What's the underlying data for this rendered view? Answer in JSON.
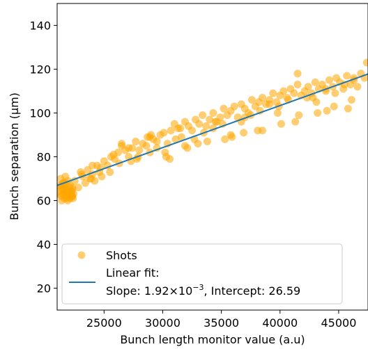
{
  "chart_data": {
    "type": "scatter",
    "xlabel": "Bunch length monitor value (a.u)",
    "ylabel": "Bunch separation (µm)",
    "xlim": [
      21000,
      47500
    ],
    "ylim": [
      10,
      150
    ],
    "xticks": [
      25000,
      30000,
      35000,
      40000,
      45000
    ],
    "yticks": [
      20,
      40,
      60,
      80,
      100,
      120,
      140
    ],
    "grid": false,
    "legend_position": "bottom-left",
    "colors": {
      "scatter": "#FFA500",
      "fit": "#1f77b4"
    },
    "series": [
      {
        "name": "Shots",
        "kind": "scatter",
        "x": [
          21100,
          21200,
          21300,
          21350,
          21400,
          21450,
          21500,
          21550,
          21600,
          21650,
          21700,
          21750,
          21800,
          21850,
          21900,
          21950,
          22000,
          22050,
          22100,
          22150,
          22200,
          22250,
          22300,
          22350,
          22400,
          21300,
          21500,
          21700,
          21900,
          22100,
          22300,
          21400,
          21800,
          22200,
          21600,
          22000,
          21200,
          21900,
          22300,
          21700,
          22500,
          22800,
          23000,
          23200,
          23400,
          23600,
          23800,
          24000,
          24200,
          24400,
          24600,
          24800,
          25000,
          25300,
          25600,
          25900,
          26200,
          26500,
          26800,
          27100,
          27400,
          27700,
          28000,
          28300,
          28600,
          28900,
          29200,
          29500,
          29800,
          30100,
          30400,
          30700,
          31000,
          31300,
          31600,
          31900,
          32200,
          32500,
          32800,
          33100,
          33400,
          33700,
          34000,
          34300,
          34600,
          34900,
          35200,
          35500,
          35800,
          36100,
          36400,
          36700,
          37000,
          37300,
          37600,
          37900,
          38200,
          38500,
          38800,
          39100,
          39400,
          39700,
          40000,
          40300,
          40600,
          40900,
          41200,
          41500,
          41800,
          42100,
          42400,
          42700,
          43000,
          43300,
          43600,
          43900,
          44200,
          44500,
          44800,
          45100,
          45400,
          45700,
          46000,
          46300,
          46600,
          46900,
          47200,
          47400,
          23100,
          23900,
          24700,
          25500,
          26300,
          27100,
          27900,
          28700,
          29500,
          30300,
          31100,
          31900,
          32700,
          33500,
          34300,
          35100,
          35900,
          36700,
          37500,
          38300,
          39100,
          39900,
          40700,
          41500,
          42300,
          43100,
          43900,
          44700,
          45500,
          46300,
          26500,
          27800,
          29000,
          30200,
          31500,
          33000,
          34500,
          35800,
          37000,
          38500,
          39800,
          41300,
          42800,
          44000,
          45800,
          24000,
          25800,
          27300,
          28900,
          30600,
          32100,
          33800,
          35300,
          36900,
          38100,
          40100,
          41600,
          43200,
          44600,
          46100
        ],
        "y": [
          64,
          63,
          66,
          62,
          67,
          65,
          63,
          68,
          61,
          64,
          66,
          62,
          65,
          63,
          60,
          64,
          62,
          66,
          61,
          63,
          64,
          62,
          65,
          61,
          63,
          70,
          68,
          71,
          69,
          67,
          66,
          60,
          61,
          62,
          65,
          63,
          67,
          64,
          62,
          68,
          69,
          66,
          73,
          71,
          68,
          74,
          70,
          72,
          69,
          76,
          73,
          71,
          78,
          76,
          80,
          79,
          82,
          85,
          83,
          80,
          84,
          87,
          83,
          86,
          85,
          89,
          88,
          87,
          90,
          91,
          86,
          92,
          95,
          93,
          89,
          96,
          94,
          92,
          97,
          95,
          99,
          94,
          97,
          100,
          96,
          98,
          102,
          99,
          101,
          103,
          98,
          104,
          102,
          100,
          106,
          103,
          105,
          107,
          104,
          106,
          109,
          105,
          108,
          110,
          107,
          111,
          109,
          113,
          108,
          110,
          112,
          109,
          114,
          111,
          113,
          110,
          115,
          112,
          116,
          114,
          111,
          117,
          113,
          115,
          112,
          118,
          116,
          123,
          72,
          70,
          75,
          73,
          77,
          84,
          80,
          89,
          84,
          80,
          88,
          85,
          88,
          91,
          93,
          95,
          89,
          96,
          99,
          101,
          104,
          103,
          106,
          118,
          107,
          105,
          111,
          109,
          113,
          116,
          86,
          79,
          90,
          82,
          93,
          86,
          96,
          90,
          98,
          92,
          100,
          96,
          107,
          101,
          102,
          76,
          81,
          78,
          82,
          79,
          84,
          87,
          88,
          91,
          92,
          95,
          99,
          100,
          103,
          106
        ]
      },
      {
        "name": "Linear fit:",
        "kind": "line",
        "slope": 0.00192,
        "intercept": 26.59
      }
    ],
    "legend": {
      "shots_label": "Shots",
      "fit_label_line1": "Linear fit:",
      "fit_label_line2_prefix": "Slope: 1.92×10",
      "fit_label_line2_exp": "−3",
      "fit_label_line2_suffix": ", Intercept: 26.59"
    }
  }
}
